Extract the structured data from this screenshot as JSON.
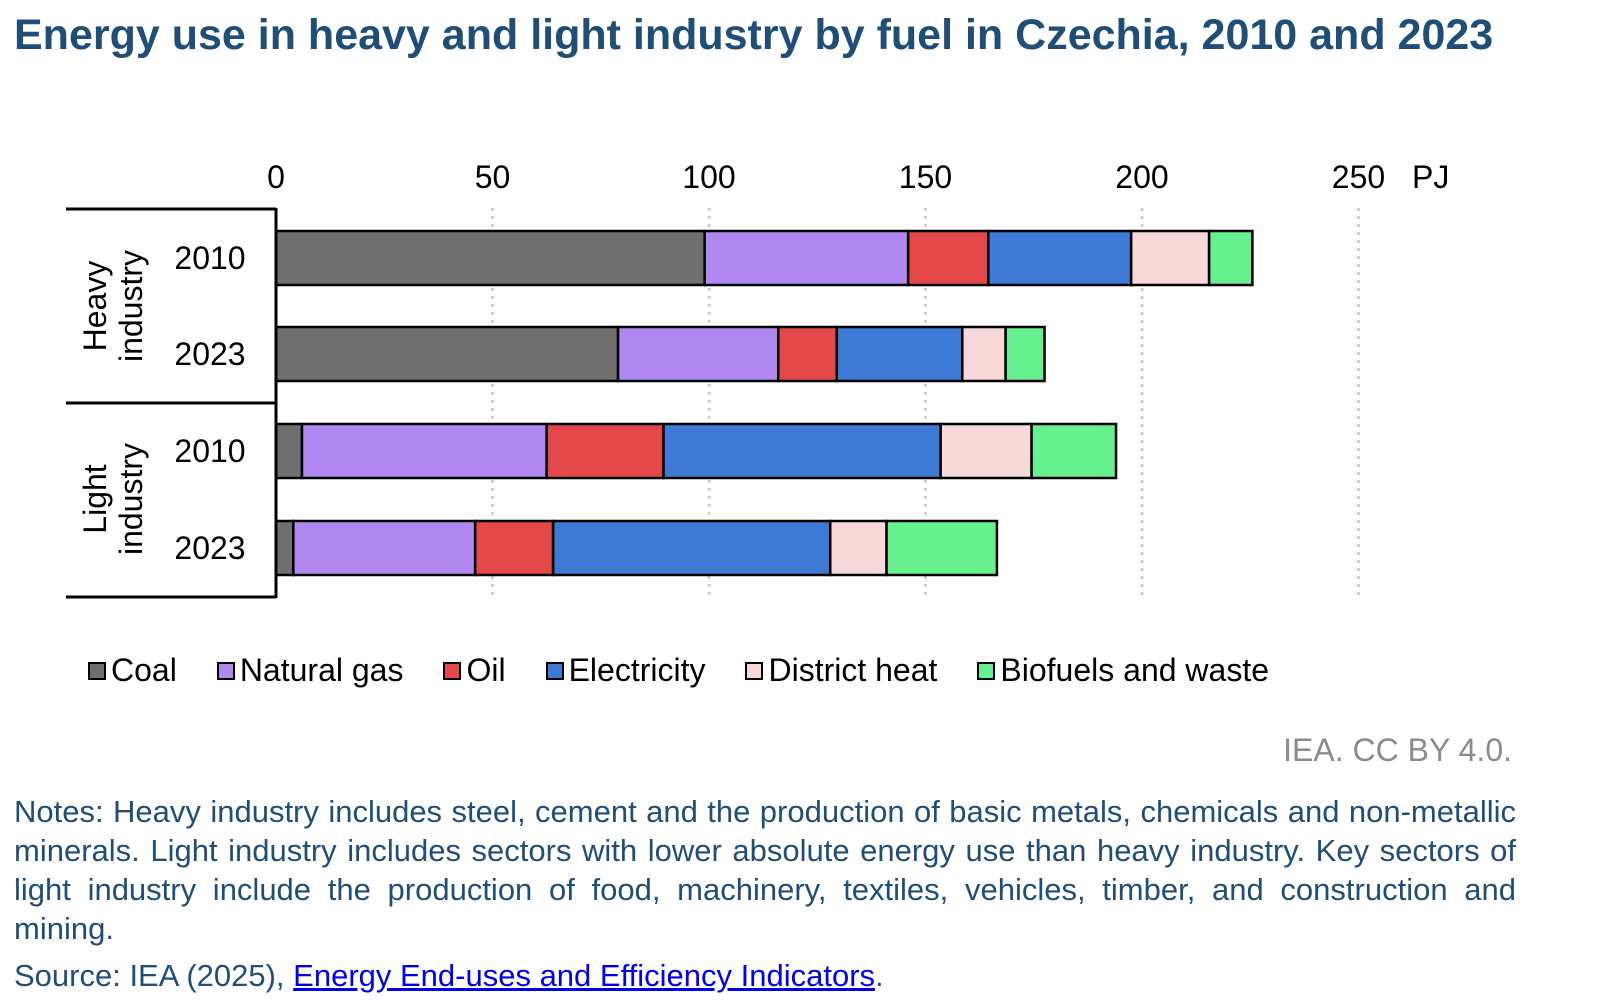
{
  "title": "Energy use in heavy and light industry by fuel in Czechia, 2010 and 2023",
  "credit": "IEA. CC BY 4.0.",
  "notes": "Notes: Heavy industry includes steel, cement and the production of basic metals, chemicals and non-metallic minerals. Light industry includes sectors with lower absolute energy use than heavy industry. Key sectors of light industry include the production of food, machinery, textiles, vehicles, timber, and construction and mining.",
  "source": {
    "prefix": "Source: IEA (2025), ",
    "link_text": "Energy End-uses and Efficiency Indicators",
    "suffix": "."
  },
  "chart_data": {
    "type": "bar",
    "orientation": "horizontal",
    "stacked": true,
    "unit": "PJ",
    "xlim": [
      0,
      250
    ],
    "x_ticks": [
      "0",
      "50",
      "100",
      "150",
      "200",
      "250"
    ],
    "x_tick_values": [
      0,
      50,
      100,
      150,
      200,
      250
    ],
    "groups": [
      {
        "label": "Heavy industry",
        "label_lines": [
          "Heavy",
          "industry"
        ]
      },
      {
        "label": "Light industry",
        "label_lines": [
          "Light",
          "industry"
        ]
      }
    ],
    "categories": [
      "2010",
      "2023",
      "2010",
      "2023"
    ],
    "category_groups": [
      0,
      0,
      1,
      1
    ],
    "series": [
      {
        "name": "Coal",
        "color": "#6f6f6f",
        "values": [
          99,
          79,
          6,
          4
        ]
      },
      {
        "name": "Natural gas",
        "color": "#b088f0",
        "values": [
          47,
          37,
          56.5,
          42
        ]
      },
      {
        "name": "Oil",
        "color": "#e5484a",
        "values": [
          18.5,
          13.5,
          27,
          18
        ]
      },
      {
        "name": "Electricity",
        "color": "#3d7ad6",
        "values": [
          33,
          29,
          64,
          64
        ]
      },
      {
        "name": "District heat",
        "color": "#f8d9d9",
        "values": [
          18,
          10,
          21,
          13
        ]
      },
      {
        "name": "Biofuels and waste",
        "color": "#66f090",
        "values": [
          10,
          9,
          19.5,
          25.5
        ]
      }
    ],
    "legend_position": "bottom",
    "grid": "vertical dotted"
  }
}
